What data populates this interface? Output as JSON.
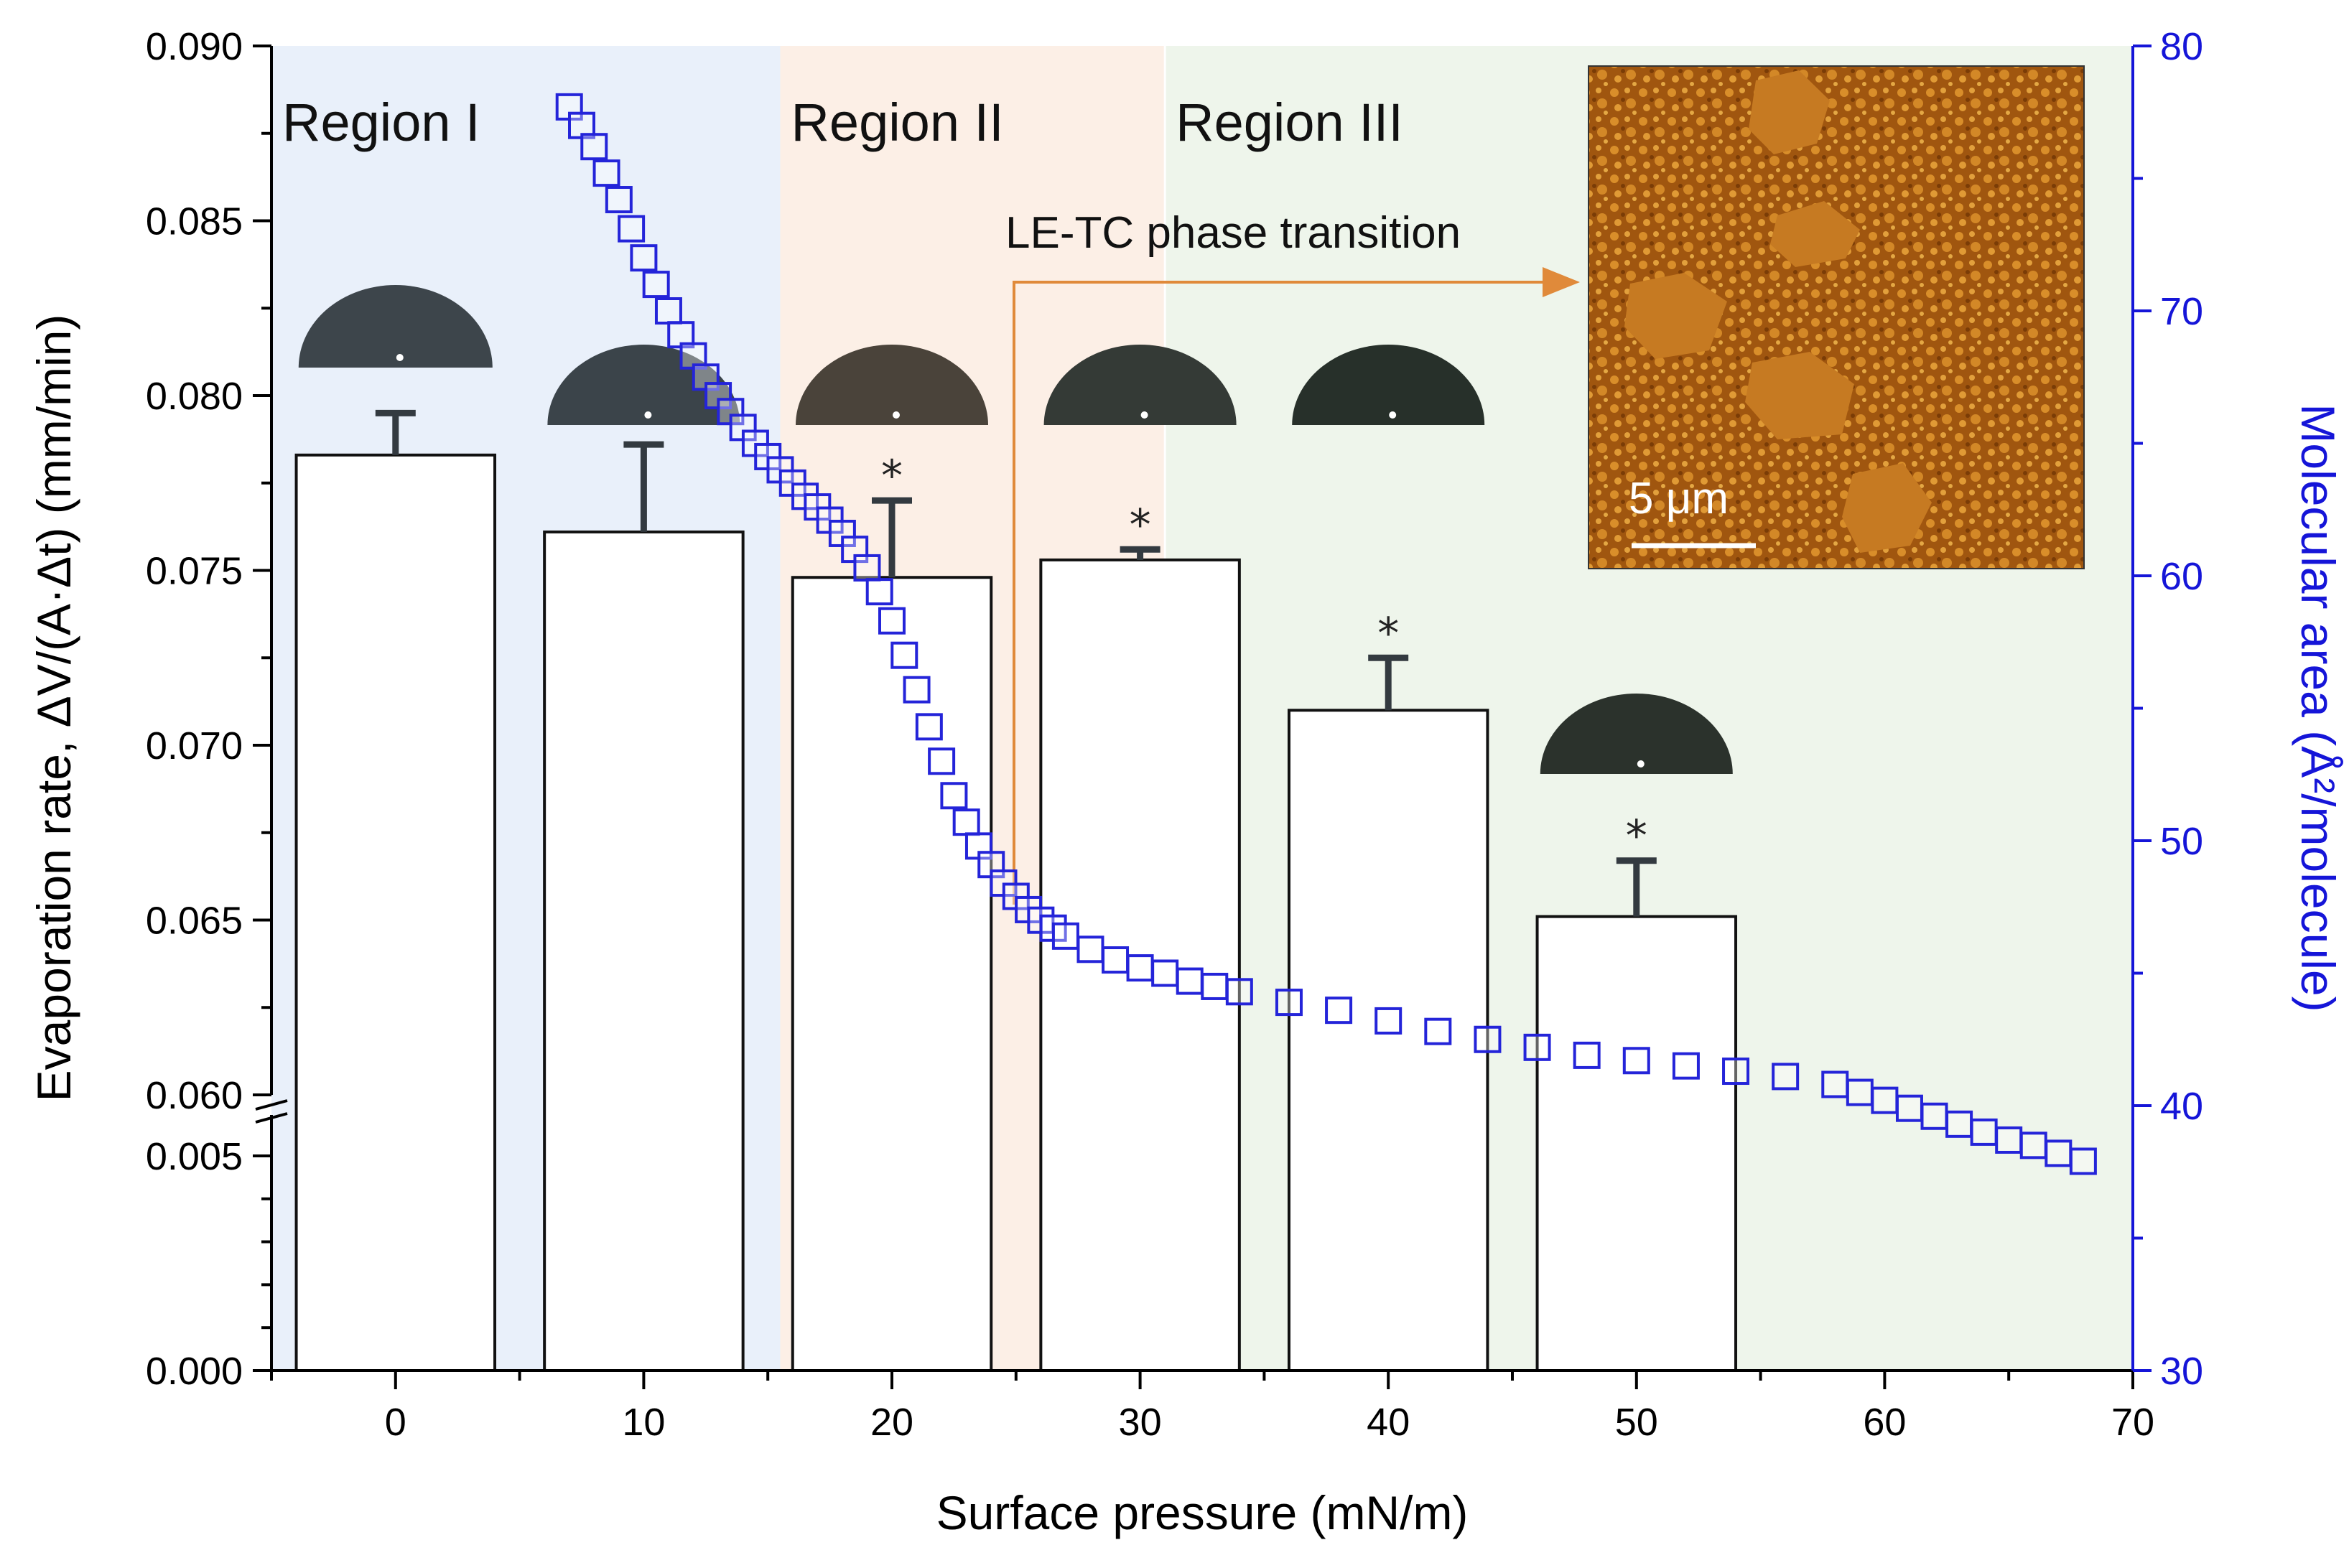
{
  "chart_data": {
    "type": "bar",
    "x_label": "Surface pressure (mN/m)",
    "y_label": "Evaporation rate, ΔV/(A·Δt) (mm/min)",
    "y2_label": "Molecular area (Å²/molecule)",
    "x_range": [
      -5,
      70
    ],
    "x_ticks": [
      "0",
      "10",
      "20",
      "30",
      "40",
      "50",
      "60",
      "70"
    ],
    "y_ticks_upper": [
      "0.060",
      "0.065",
      "0.070",
      "0.075",
      "0.080",
      "0.085",
      "0.090"
    ],
    "y_ticks_lower": [
      "0.000",
      "0.005"
    ],
    "y_range_upper": [
      0.06,
      0.09
    ],
    "y_range_lower": [
      0,
      0.005
    ],
    "y_axis_break": true,
    "y2_ticks": [
      "30",
      "40",
      "50",
      "60",
      "70",
      "80"
    ],
    "y2_range": [
      30,
      80
    ],
    "regions": [
      {
        "label": "Region I",
        "x_start": -5,
        "x_end": 15.5,
        "color": "#e9f0fa"
      },
      {
        "label": "Region II",
        "x_start": 15.5,
        "x_end": 31,
        "color": "#fcefe6"
      },
      {
        "label": "Region III",
        "x_start": 31,
        "x_end": 70,
        "color": "#eef5eb"
      }
    ],
    "bars": {
      "name": "Evaporation rate",
      "x": [
        0,
        10,
        20,
        30,
        40,
        50
      ],
      "values": [
        0.0783,
        0.0761,
        0.0748,
        0.0753,
        0.071,
        0.0651
      ],
      "error": [
        0.0012,
        0.0025,
        0.0022,
        0.0003,
        0.0015,
        0.0016
      ],
      "significant": [
        false,
        false,
        true,
        true,
        true,
        true
      ],
      "significance_marker": "*"
    },
    "isotherm": {
      "name": "Molecular area",
      "axis": "right",
      "marker": "open square",
      "color": "#2424d9",
      "x": [
        7,
        7.5,
        8,
        8.5,
        9,
        9.5,
        10,
        10.5,
        11,
        11.5,
        12,
        12.5,
        13,
        13.5,
        14,
        14.5,
        15,
        15.5,
        16,
        16.5,
        17,
        17.5,
        18,
        18.5,
        19,
        19.5,
        20,
        20.5,
        21,
        21.5,
        22,
        22.5,
        23,
        23.5,
        24,
        24.5,
        25,
        25.5,
        26,
        26.5,
        27,
        28,
        29,
        30,
        31,
        32,
        33,
        34,
        36,
        38,
        40,
        42,
        44,
        46,
        48,
        50,
        52,
        54,
        56,
        58,
        59,
        60,
        61,
        62,
        63,
        64,
        65,
        66,
        67,
        68
      ],
      "values": [
        77.7,
        77.0,
        76.2,
        75.2,
        74.2,
        73.1,
        72.0,
        71.0,
        70.0,
        69.1,
        68.3,
        67.5,
        66.8,
        66.2,
        65.6,
        65.0,
        64.5,
        64.0,
        63.5,
        63.0,
        62.6,
        62.1,
        61.6,
        61.0,
        60.3,
        59.4,
        58.3,
        57.0,
        55.7,
        54.3,
        53.0,
        51.7,
        50.7,
        49.8,
        49.1,
        48.4,
        47.9,
        47.4,
        47.0,
        46.7,
        46.4,
        45.9,
        45.5,
        45.2,
        45.0,
        44.7,
        44.5,
        44.3,
        43.9,
        43.6,
        43.2,
        42.8,
        42.5,
        42.2,
        41.9,
        41.7,
        41.5,
        41.3,
        41.1,
        40.8,
        40.5,
        40.2,
        39.9,
        39.6,
        39.3,
        39.0,
        38.7,
        38.5,
        38.2,
        37.9
      ]
    },
    "annotations": {
      "phase_transition": "LE-TC phase transition",
      "scale_bar": "5 μm"
    }
  }
}
